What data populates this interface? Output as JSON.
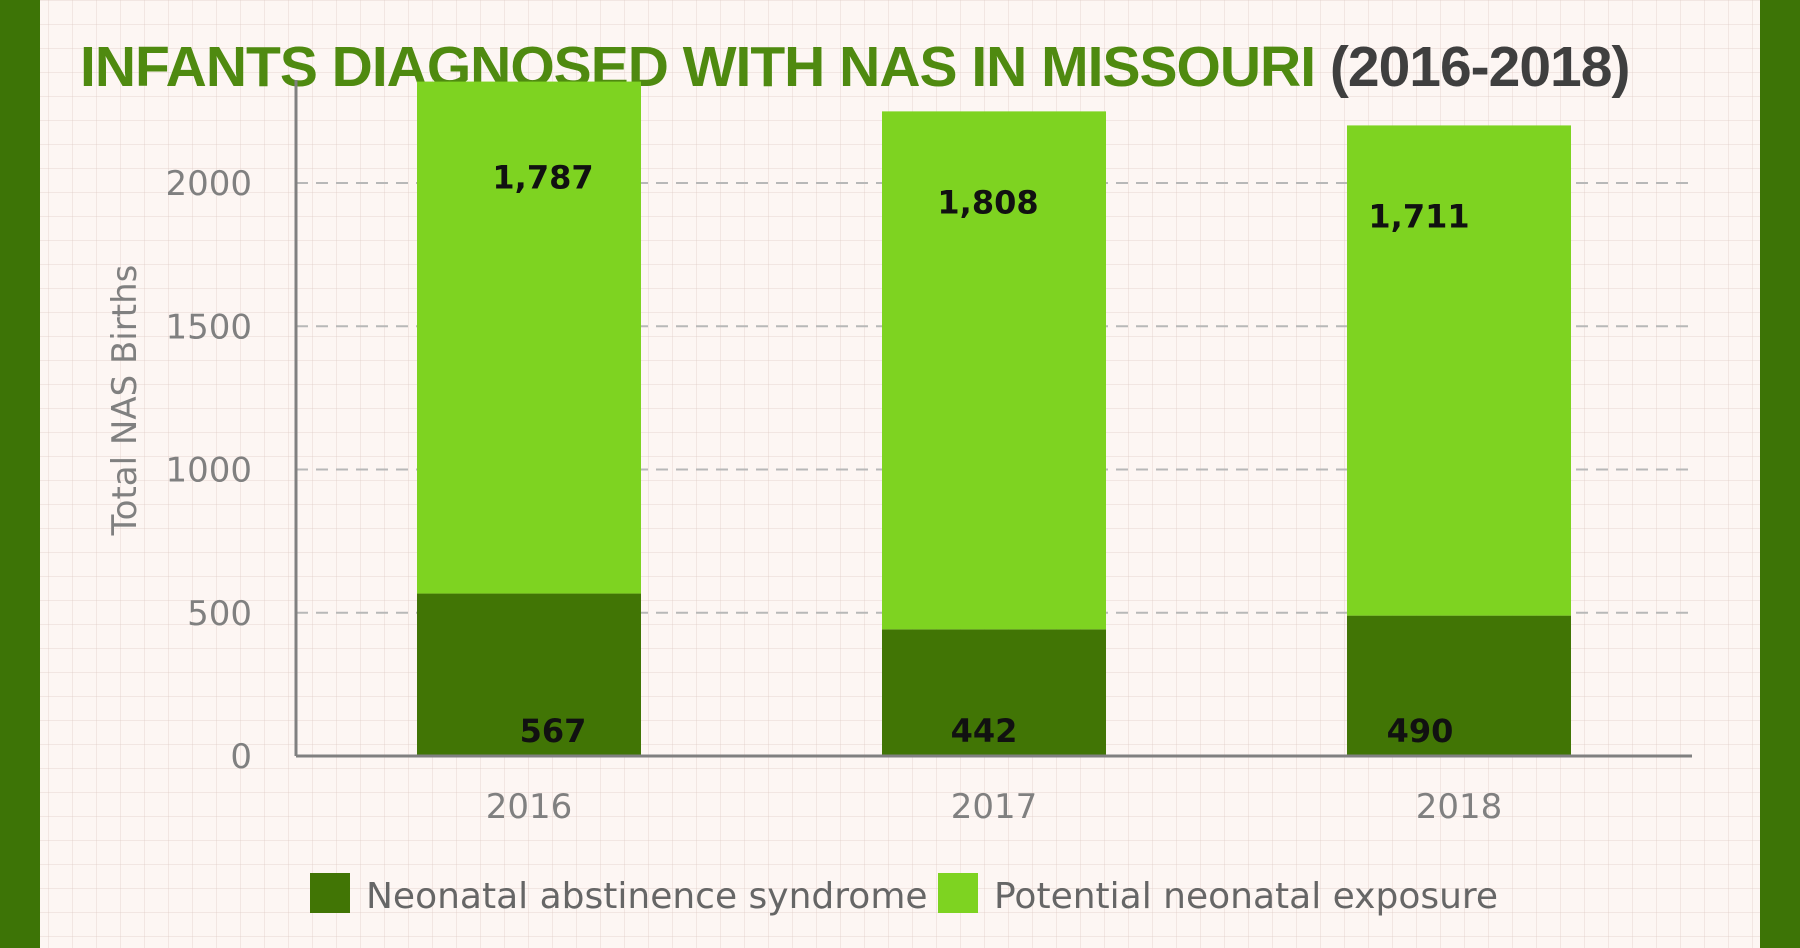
{
  "title": {
    "main": "INFANTS DIAGNOSED WITH NAS IN MISSOURI",
    "years": "(2016-2018)"
  },
  "colors": {
    "frame": "#3d7406",
    "title_green": "#4f8a10",
    "nas": "#417505",
    "exposure": "#7ed321",
    "axis": "#808080",
    "grid": "#b8b8b8"
  },
  "chart_data": {
    "type": "bar",
    "stacked": true,
    "title": "INFANTS DIAGNOSED WITH NAS IN MISSOURI (2016-2018)",
    "xlabel": "",
    "ylabel": "Total NAS Births",
    "ylim": [
      0,
      2400
    ],
    "yticks": [
      0,
      500,
      1000,
      1500,
      2000
    ],
    "grid": "horizontal dashed",
    "legend": "bottom",
    "categories": [
      "2016",
      "2017",
      "2018"
    ],
    "series": [
      {
        "name": "Neonatal abstinence syndrome",
        "color": "#417505",
        "values": [
          567,
          442,
          490
        ],
        "labels": [
          "567",
          "442",
          "490"
        ]
      },
      {
        "name": "Potential neonatal exposure",
        "color": "#7ed321",
        "values": [
          1787,
          1808,
          1711
        ],
        "labels": [
          "1,787",
          "1,808",
          "1,711"
        ]
      }
    ]
  }
}
